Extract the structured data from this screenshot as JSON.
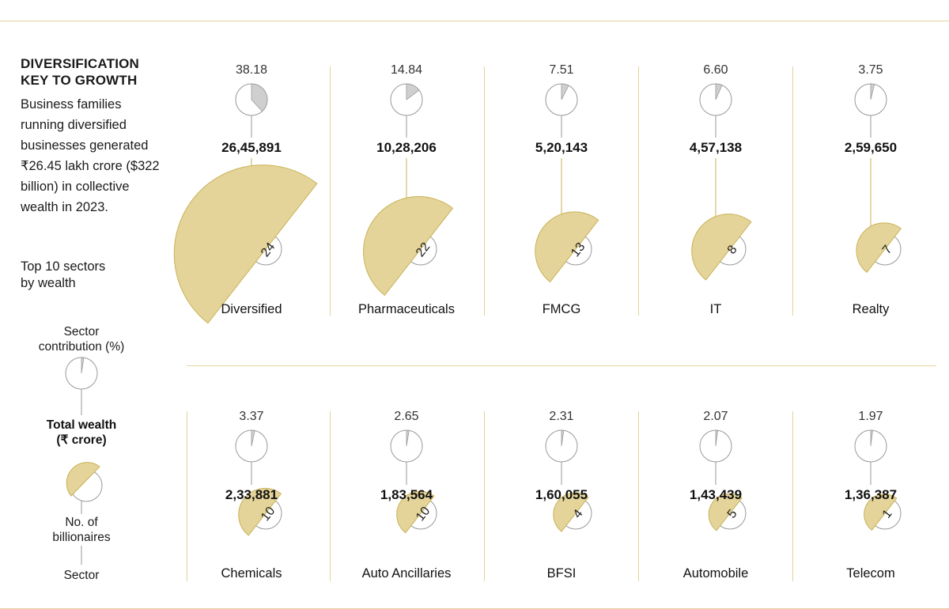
{
  "header": {
    "title_line1": "DIVERSIFICATION",
    "title_line2": "KEY TO GROWTH",
    "description": "Business families running diversified businesses generated ₹26.45 lakh crore ($322 billion) in collective wealth in 2023.",
    "subtitle_line1": "Top 10 sectors",
    "subtitle_line2": "by wealth"
  },
  "legend": {
    "contribution_line1": "Sector",
    "contribution_line2": "contribution (%)",
    "wealth_line1": "Total wealth",
    "wealth_line2": "(₹ crore)",
    "billionaires_line1": "No. of",
    "billionaires_line2": "billionaires",
    "sector": "Sector"
  },
  "colors": {
    "gold": "#e4d49a",
    "gold_stroke": "#c9b256",
    "pie_fill": "#cfcfcf",
    "outline": "#9a9a9a",
    "rule": "#e2d49a"
  },
  "chart_data": {
    "type": "pie",
    "units": {
      "contribution": "%",
      "wealth": "₹ crore"
    },
    "sectors": [
      {
        "sector": "Diversified",
        "contribution_label": "38.18",
        "contribution": 38.18,
        "wealth_label": "26,45,891",
        "wealth": 2645891,
        "billionaires_label": "24",
        "billionaires": 24
      },
      {
        "sector": "Pharmaceuticals",
        "contribution_label": "14.84",
        "contribution": 14.84,
        "wealth_label": "10,28,206",
        "wealth": 1028206,
        "billionaires_label": "22",
        "billionaires": 22
      },
      {
        "sector": "FMCG",
        "contribution_label": "7.51",
        "contribution": 7.51,
        "wealth_label": "5,20,143",
        "wealth": 520143,
        "billionaires_label": "13",
        "billionaires": 13
      },
      {
        "sector": "IT",
        "contribution_label": "6.60",
        "contribution": 6.6,
        "wealth_label": "4,57,138",
        "wealth": 457138,
        "billionaires_label": "8",
        "billionaires": 8
      },
      {
        "sector": "Realty",
        "contribution_label": "3.75",
        "contribution": 3.75,
        "wealth_label": "2,59,650",
        "wealth": 259650,
        "billionaires_label": "7",
        "billionaires": 7
      },
      {
        "sector": "Chemicals",
        "contribution_label": "3.37",
        "contribution": 3.37,
        "wealth_label": "2,33,881",
        "wealth": 233881,
        "billionaires_label": "10",
        "billionaires": 10
      },
      {
        "sector": "Auto Ancillaries",
        "contribution_label": "2.65",
        "contribution": 2.65,
        "wealth_label": "1,83,564",
        "wealth": 183564,
        "billionaires_label": "10",
        "billionaires": 10
      },
      {
        "sector": "BFSI",
        "contribution_label": "2.31",
        "contribution": 2.31,
        "wealth_label": "1,60,055",
        "wealth": 160055,
        "billionaires_label": "4",
        "billionaires": 4
      },
      {
        "sector": "Automobile",
        "contribution_label": "2.07",
        "contribution": 2.07,
        "wealth_label": "1,43,439",
        "wealth": 143439,
        "billionaires_label": "5",
        "billionaires": 5
      },
      {
        "sector": "Telecom",
        "contribution_label": "1.97",
        "contribution": 1.97,
        "wealth_label": "1,36,387",
        "wealth": 136387,
        "billionaires_label": "1",
        "billionaires": 1
      }
    ]
  }
}
